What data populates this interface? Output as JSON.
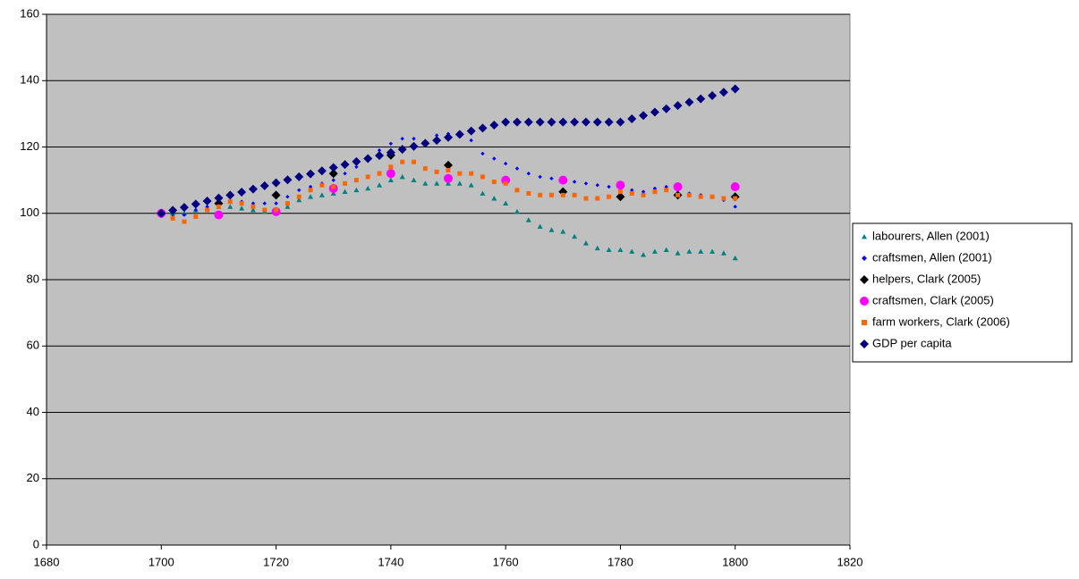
{
  "chart_data": {
    "type": "scatter",
    "x": [
      1700,
      1702,
      1704,
      1706,
      1708,
      1710,
      1712,
      1714,
      1716,
      1718,
      1720,
      1722,
      1724,
      1726,
      1728,
      1730,
      1732,
      1734,
      1736,
      1738,
      1740,
      1742,
      1744,
      1746,
      1748,
      1750,
      1752,
      1754,
      1756,
      1758,
      1760,
      1762,
      1764,
      1766,
      1768,
      1770,
      1772,
      1774,
      1776,
      1778,
      1780,
      1782,
      1784,
      1786,
      1788,
      1790,
      1792,
      1794,
      1796,
      1798,
      1800
    ],
    "series": [
      {
        "name": "labourers, Allen (2001)",
        "color": "#008080",
        "marker": "triangle",
        "values": [
          100,
          100,
          100,
          101,
          101.5,
          102,
          102,
          101.5,
          101,
          100.5,
          100.5,
          102,
          104,
          105,
          105.5,
          106,
          106.5,
          107,
          107.5,
          108.5,
          110,
          111,
          110,
          109,
          109,
          109,
          109,
          108.5,
          106,
          104.5,
          103,
          100.5,
          98,
          96,
          95,
          94.5,
          93,
          91,
          89.5,
          89,
          89,
          88.5,
          87.5,
          88.5,
          89,
          88,
          88.5,
          88.5,
          88.5,
          88,
          86.5
        ]
      },
      {
        "name": "craftsmen, Allen (2001)",
        "color": "#0000ff",
        "marker": "diamond",
        "values": [
          100,
          99,
          99.5,
          101,
          102,
          103,
          103.5,
          103.5,
          103,
          103,
          103,
          105,
          107,
          108,
          109,
          110,
          112,
          114,
          116.5,
          119,
          121,
          122.5,
          122.5,
          121.5,
          123.5,
          124,
          123.5,
          122,
          118,
          116.5,
          115,
          113.5,
          112,
          111,
          110.5,
          110,
          109.5,
          109,
          108.5,
          108,
          108,
          107,
          106.5,
          107.5,
          108,
          107,
          106,
          105.5,
          105,
          104,
          102
        ]
      },
      {
        "name": "helpers, Clark (2005)",
        "color": "#000000",
        "marker": "diamond",
        "x": [
          1700,
          1710,
          1720,
          1730,
          1740,
          1750,
          1770,
          1780,
          1790,
          1800
        ],
        "values": [
          100,
          103,
          105.5,
          112,
          117.5,
          114.5,
          106.5,
          105,
          105.5,
          105
        ]
      },
      {
        "name": "craftsmen, Clark (2005)",
        "color": "#ff00ff",
        "marker": "circle",
        "x": [
          1700,
          1710,
          1720,
          1730,
          1740,
          1750,
          1760,
          1770,
          1780,
          1790,
          1800
        ],
        "values": [
          100,
          99.5,
          100.5,
          107.5,
          112,
          110.5,
          110,
          110,
          108.5,
          108,
          108
        ]
      },
      {
        "name": "farm workers, Clark (2006)",
        "color": "#ff6600",
        "marker": "square",
        "values": [
          100,
          98.5,
          97.5,
          99,
          101,
          102,
          103.5,
          103,
          102,
          101,
          101,
          103,
          105,
          107,
          108.5,
          108,
          109,
          110,
          111,
          112,
          114,
          115.5,
          115.5,
          113.5,
          112.5,
          113,
          112,
          112,
          111,
          109.5,
          109,
          107,
          106,
          105.5,
          105.5,
          105.5,
          105.5,
          104.5,
          104.5,
          105,
          106.5,
          106,
          105.5,
          106.5,
          107,
          105.5,
          105.5,
          105,
          105,
          104.5,
          104.5
        ]
      },
      {
        "name": "GDP per capita",
        "color": "#000080",
        "marker": "diamond",
        "values": [
          100,
          100.9,
          101.8,
          102.8,
          103.7,
          104.6,
          105.5,
          106.4,
          107.3,
          108.3,
          109.2,
          110.1,
          111,
          111.9,
          112.8,
          113.8,
          114.7,
          115.6,
          116.5,
          117.4,
          118.3,
          119.3,
          120.2,
          121.1,
          122,
          122.9,
          123.8,
          124.8,
          125.7,
          126.6,
          127.5,
          127.5,
          127.5,
          127.5,
          127.5,
          127.5,
          127.5,
          127.5,
          127.5,
          127.5,
          127.5,
          128.5,
          129.5,
          130.5,
          131.5,
          132.5,
          133.5,
          134.5,
          135.5,
          136.5,
          137.5
        ]
      }
    ],
    "xlim": [
      1680,
      1820
    ],
    "xticks": [
      1680,
      1700,
      1720,
      1740,
      1760,
      1780,
      1800,
      1820
    ],
    "ylim": [
      0,
      160
    ],
    "yticks": [
      0,
      20,
      40,
      60,
      80,
      100,
      120,
      140,
      160
    ],
    "grid": true,
    "legend": "right",
    "background": "#c0c0c0"
  }
}
